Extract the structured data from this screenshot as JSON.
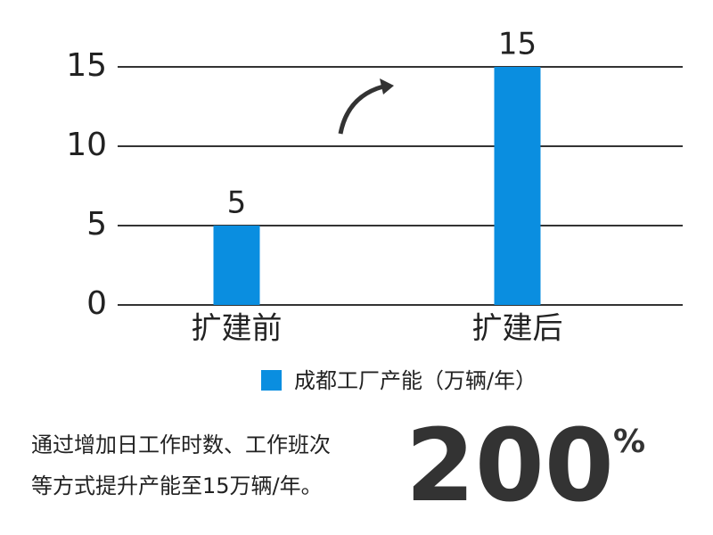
{
  "chart_data": {
    "type": "bar",
    "categories": [
      "扩建前",
      "扩建后"
    ],
    "series": [
      {
        "name": "成都工厂产能（万辆/年）",
        "color": "#0a8ee0",
        "values": [
          5,
          15
        ]
      }
    ],
    "ylim": [
      0,
      15
    ],
    "yticks": [
      0,
      5,
      10,
      15
    ],
    "grid": true,
    "legend": "bottom",
    "annotation_lines": [
      "通过增加日工作时数、工作班次",
      "等方式提升产能至15万辆/年。"
    ],
    "highlight": "200",
    "highlight_unit": "%"
  }
}
